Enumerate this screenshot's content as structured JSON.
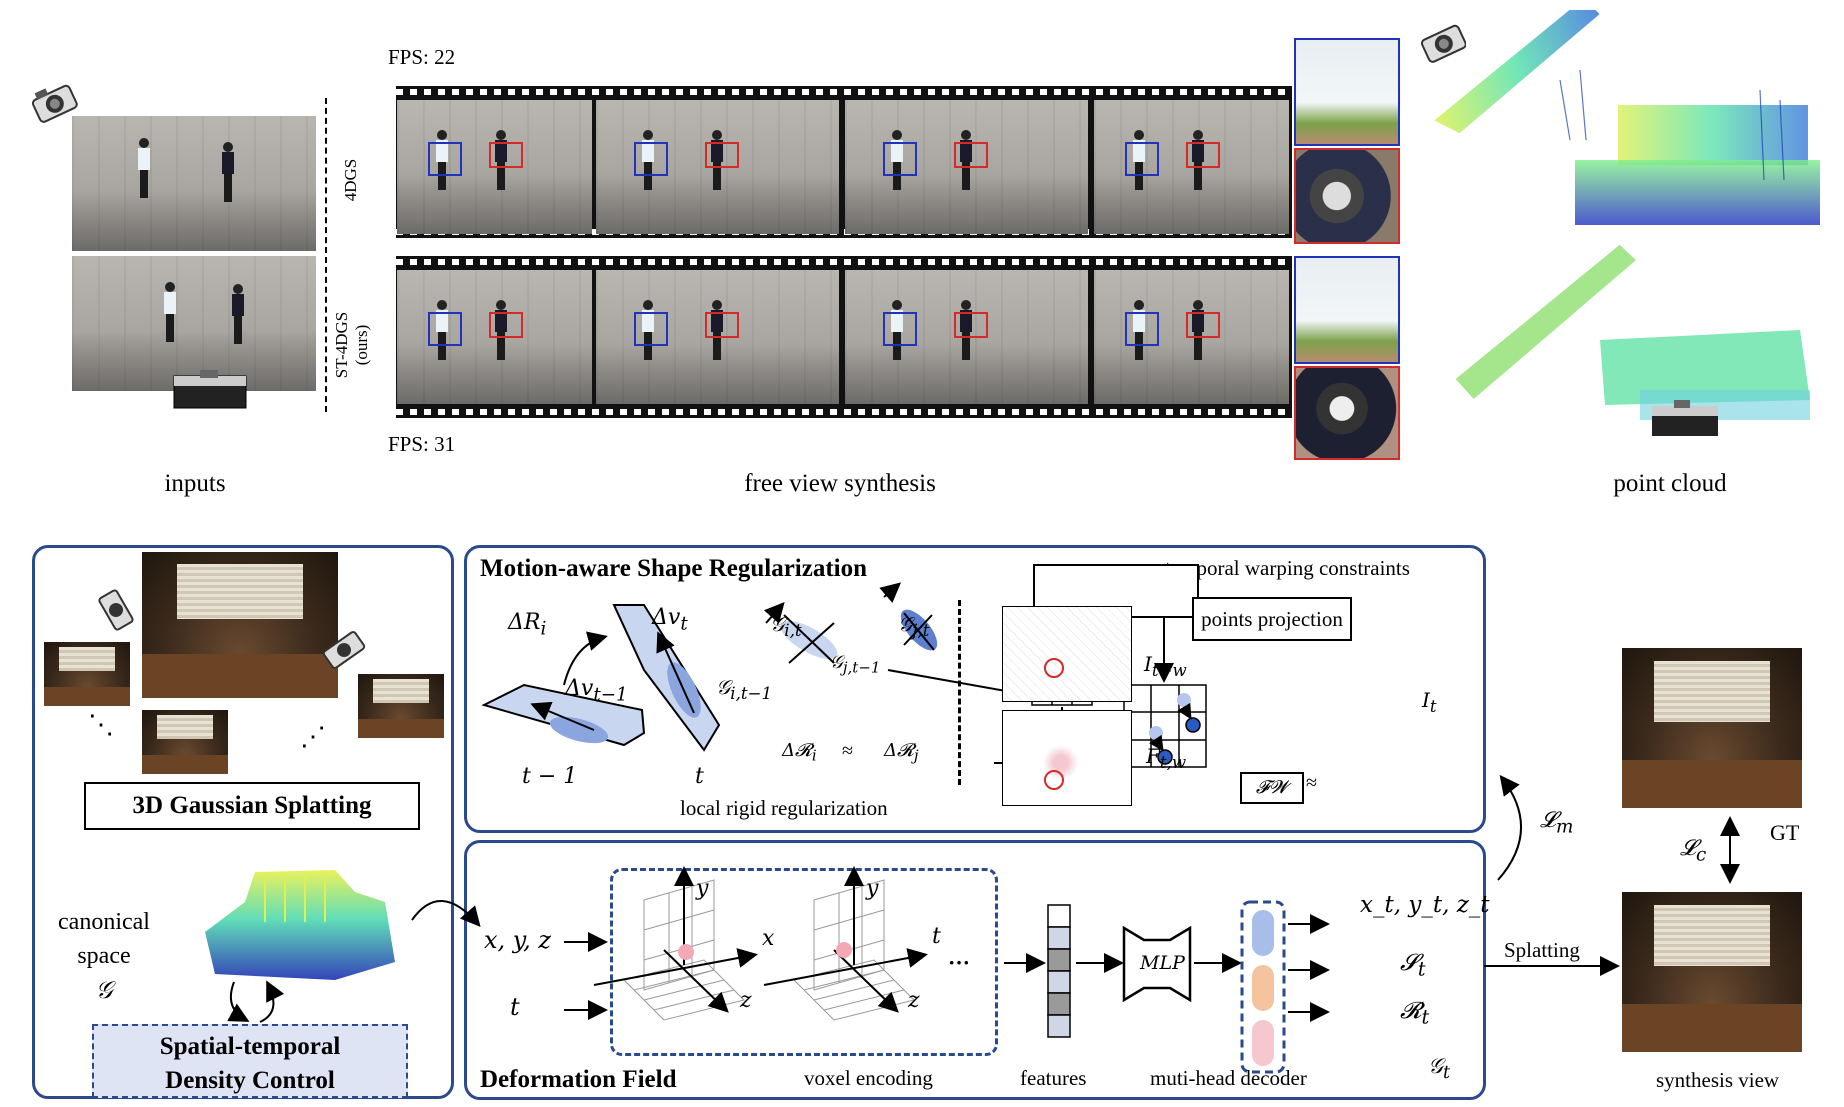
{
  "top": {
    "captions": {
      "inputs": "inputs",
      "fvs": "free view synthesis",
      "pc": "point cloud"
    },
    "fps_top": "FPS:  22",
    "fps_bottom": "FPS:  31",
    "method_top": "4DGS",
    "method_bottom_1": "ST-4DGS",
    "method_bottom_2": "(ours)"
  },
  "msr": {
    "title": "Motion-aware Shape Regularization",
    "twc": "temporal warping constraints",
    "dR_i": "ΔR",
    "dR_i_sub": "i",
    "dv_t": "Δv",
    "dv_t_sub": "t",
    "dv_tm1": "Δv",
    "dv_tm1_sub": "t−1",
    "t_minus_1": "t − 1",
    "t": "t",
    "G_it": "𝒢",
    "G_it_sub": "i,t",
    "G_jt": "𝒢",
    "G_jt_sub": "j,t",
    "G_itm1": "𝒢",
    "G_itm1_sub": "i,t−1",
    "G_jtm1": "𝒢",
    "G_jtm1_sub": "j,t−1",
    "approx_left": "Δ𝓡",
    "approx_left_sub": "i",
    "approx": "≈",
    "approx_right": "Δ𝓡",
    "approx_right_sub": "j",
    "lrr": "local rigid regularization",
    "points_projection": "points projection",
    "I_tw": "I",
    "I_tw_sub": "t−w",
    "F_tw": "F",
    "F_tw_sub": "t,w",
    "FW": "𝓕𝓦",
    "approx2": "≈",
    "I_t": "I",
    "I_t_sub": "t"
  },
  "left": {
    "dots_left": "⋱",
    "dots_right": "⋰",
    "gs_box": "3D Gaussian Splatting",
    "canonical_1": "canonical",
    "canonical_2": "space",
    "canonical_G": "𝒢",
    "stdc_1": "Spatial-temporal",
    "stdc_2": "Density Control"
  },
  "deform": {
    "title": "Deformation Field",
    "xyz": "x, y, z",
    "t_in": "t",
    "axis_y1": "y",
    "axis_x1": "x",
    "axis_z1": "z",
    "axis_y2": "y",
    "axis_t2": "t",
    "axis_z2": "z",
    "ellipsis": "···",
    "voxel_encoding": "voxel encoding",
    "features": "features",
    "mlp": "MLP",
    "decoder": "muti-head decoder",
    "out1": "x",
    "out1_rest": "t",
    "out_xyz": "x_t, y_t, z_t",
    "out_S": "𝓢",
    "out_S_sub": "t",
    "out_R": "𝓡",
    "out_R_sub": "t",
    "out_G": "𝒢",
    "out_G_sub": "t"
  },
  "right": {
    "Lm": "𝓛",
    "Lm_sub": "m",
    "Lc": "𝓛",
    "Lc_sub": "c",
    "GT": "GT",
    "splatting": "Splatting",
    "synthesis_view": "synthesis view"
  },
  "colors": {
    "panel_border": "#2b4a8c",
    "blue_box": "#2233bb",
    "red_box": "#d42a2a",
    "stdc_fill": "#dfe4f5"
  }
}
